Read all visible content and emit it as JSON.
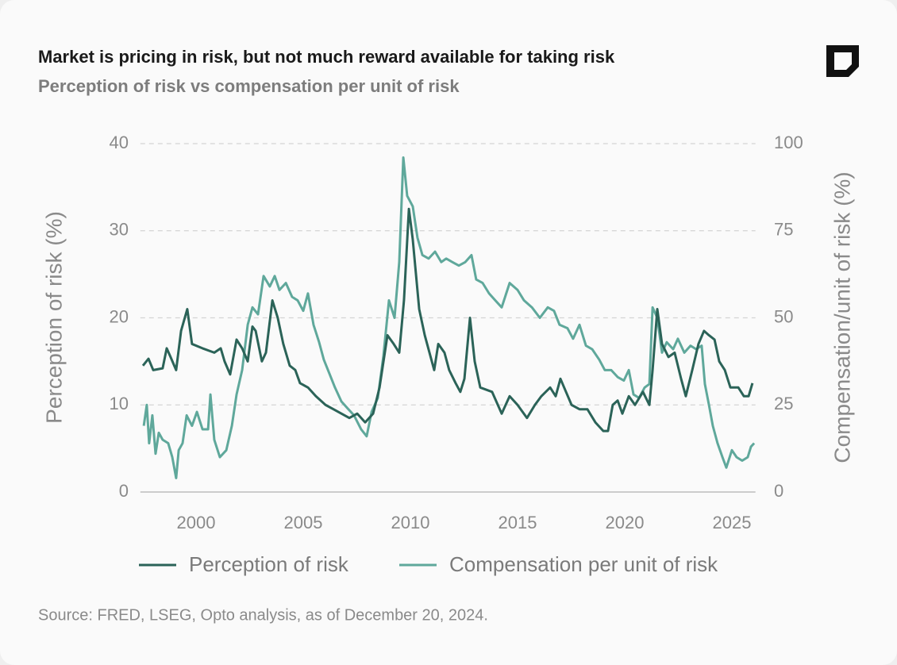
{
  "chart_data": {
    "type": "line",
    "title": "Market is pricing in risk, but not much reward available for taking risk",
    "subtitle": "Perception of risk vs compensation per unit of risk",
    "y_label": "Perception of risk (%)",
    "y2_label": "Compensation/unit of risk (%)",
    "source": "Source: FRED, LSEG, Opto analysis, as of December 20, 2024.",
    "xlim": [
      1997.4,
      2026.1
    ],
    "xticks": [
      2000,
      2005,
      2010,
      2015,
      2020,
      2025
    ],
    "ylim": [
      0,
      40
    ],
    "yticks": [
      0,
      10,
      20,
      30,
      40
    ],
    "y2lim": [
      0,
      100
    ],
    "y2ticks": [
      0,
      25,
      50,
      75,
      100
    ],
    "grid": true,
    "legend": "bottom",
    "series": [
      {
        "name": "Perception of risk",
        "color": "#2b6358",
        "x": [
          1997.52,
          1997.78,
          1998.0,
          1998.44,
          1998.63,
          1998.81,
          1999.07,
          1999.3,
          1999.59,
          1999.81,
          2000.3,
          2000.85,
          2001.15,
          2001.33,
          2001.59,
          2001.89,
          2002.15,
          2002.41,
          2002.63,
          2002.78,
          2003.07,
          2003.26,
          2003.56,
          2003.81,
          2004.07,
          2004.37,
          2004.63,
          2004.85,
          2005.22,
          2005.59,
          2006.04,
          2006.41,
          2006.78,
          2007.15,
          2007.52,
          2007.89,
          2008.26,
          2008.56,
          2008.93,
          2009.22,
          2009.48,
          2009.7,
          2009.93,
          2010.11,
          2010.41,
          2010.67,
          2010.89,
          2011.11,
          2011.3,
          2011.59,
          2011.81,
          2012.11,
          2012.33,
          2012.52,
          2012.78,
          2013.0,
          2013.26,
          2013.81,
          2014.26,
          2014.63,
          2015.0,
          2015.44,
          2015.81,
          2016.11,
          2016.52,
          2016.78,
          2017.0,
          2017.26,
          2017.52,
          2017.89,
          2018.26,
          2018.63,
          2019.0,
          2019.22,
          2019.44,
          2019.67,
          2019.89,
          2020.19,
          2020.48,
          2020.85,
          2021.15,
          2021.3,
          2021.52,
          2021.74,
          2022.04,
          2022.33,
          2022.63,
          2022.85,
          2023.15,
          2023.44,
          2023.7,
          2023.93,
          2024.19,
          2024.41,
          2024.67,
          2024.93,
          2025.3,
          2025.56,
          2025.78,
          2025.96
        ],
        "values": [
          14.5,
          15.3,
          14,
          14.2,
          16.5,
          15.5,
          14,
          18.5,
          21,
          17,
          16.5,
          16,
          16.5,
          15,
          13.5,
          17.5,
          16.5,
          15,
          19,
          18.5,
          15,
          16,
          22,
          20,
          17,
          14.5,
          14,
          12.5,
          12,
          11,
          10,
          9.5,
          9,
          8.5,
          9,
          8,
          9,
          12,
          18,
          17,
          16,
          22,
          32.5,
          29,
          21,
          18,
          16,
          14,
          17,
          16,
          14,
          12.5,
          11.5,
          13,
          20,
          15,
          12,
          11.5,
          9,
          11,
          10,
          8.5,
          10,
          11,
          12,
          11,
          13,
          11.5,
          10,
          9.5,
          9.5,
          8,
          7,
          7,
          10,
          10.5,
          9,
          11,
          10,
          11.5,
          10,
          14,
          21,
          17,
          15.5,
          16,
          13,
          11,
          14,
          17,
          18.5,
          18,
          17.5,
          15,
          14,
          12,
          12,
          11,
          11,
          12.5
        ]
      },
      {
        "name": "Compensation per unit of risk",
        "color": "#5fa89b",
        "axis": "y2",
        "x": [
          1997.56,
          1997.7,
          1997.81,
          1997.96,
          1998.11,
          1998.26,
          1998.44,
          1998.7,
          1998.89,
          1999.07,
          1999.19,
          1999.37,
          1999.56,
          1999.81,
          2000.04,
          2000.3,
          2000.56,
          2000.67,
          2000.85,
          2001.11,
          2001.41,
          2001.67,
          2001.89,
          2002.15,
          2002.41,
          2002.63,
          2002.89,
          2003.15,
          2003.44,
          2003.67,
          2003.89,
          2004.19,
          2004.48,
          2004.74,
          2005.0,
          2005.22,
          2005.48,
          2005.74,
          2005.96,
          2006.22,
          2006.48,
          2006.78,
          2007.07,
          2007.37,
          2007.7,
          2007.96,
          2008.19,
          2008.48,
          2008.74,
          2009.0,
          2009.26,
          2009.48,
          2009.67,
          2009.85,
          2010.11,
          2010.33,
          2010.56,
          2010.85,
          2011.15,
          2011.44,
          2011.67,
          2011.96,
          2012.26,
          2012.56,
          2012.85,
          2013.07,
          2013.37,
          2013.67,
          2013.96,
          2014.26,
          2014.63,
          2015.0,
          2015.3,
          2015.67,
          2016.04,
          2016.41,
          2016.7,
          2016.96,
          2017.33,
          2017.59,
          2017.89,
          2018.19,
          2018.48,
          2018.81,
          2019.07,
          2019.37,
          2019.67,
          2019.96,
          2020.19,
          2020.41,
          2020.67,
          2020.93,
          2021.15,
          2021.3,
          2021.52,
          2021.74,
          2021.96,
          2022.26,
          2022.48,
          2022.78,
          2023.07,
          2023.33,
          2023.59,
          2023.74,
          2023.93,
          2024.11,
          2024.33,
          2024.56,
          2024.74,
          2025.0,
          2025.22,
          2025.48,
          2025.74,
          2025.89,
          2026.04
        ],
        "values": [
          19,
          25,
          14,
          22,
          11,
          17,
          15,
          14,
          10,
          4,
          12,
          14,
          22,
          19,
          23,
          18,
          18,
          28,
          15,
          10,
          12,
          19,
          28,
          35,
          48,
          53,
          51,
          62,
          59,
          62,
          58,
          60,
          56,
          55,
          52,
          57,
          48,
          43,
          38,
          34,
          30,
          26,
          24,
          22,
          18,
          16,
          23,
          27,
          39,
          55,
          50,
          66,
          96,
          85,
          82,
          73,
          68,
          67,
          69,
          66,
          67,
          66,
          65,
          66,
          68,
          61,
          60,
          57,
          55,
          53,
          60,
          58,
          55,
          53,
          50,
          53,
          52,
          48,
          47,
          44,
          48,
          42,
          41,
          38,
          35,
          35,
          33,
          32,
          35,
          28,
          27,
          30,
          31,
          53,
          50,
          40,
          43,
          41,
          44,
          40,
          42,
          41,
          42,
          31,
          25,
          19,
          14,
          10,
          7,
          12,
          10,
          9,
          10,
          13,
          14
        ]
      }
    ]
  }
}
